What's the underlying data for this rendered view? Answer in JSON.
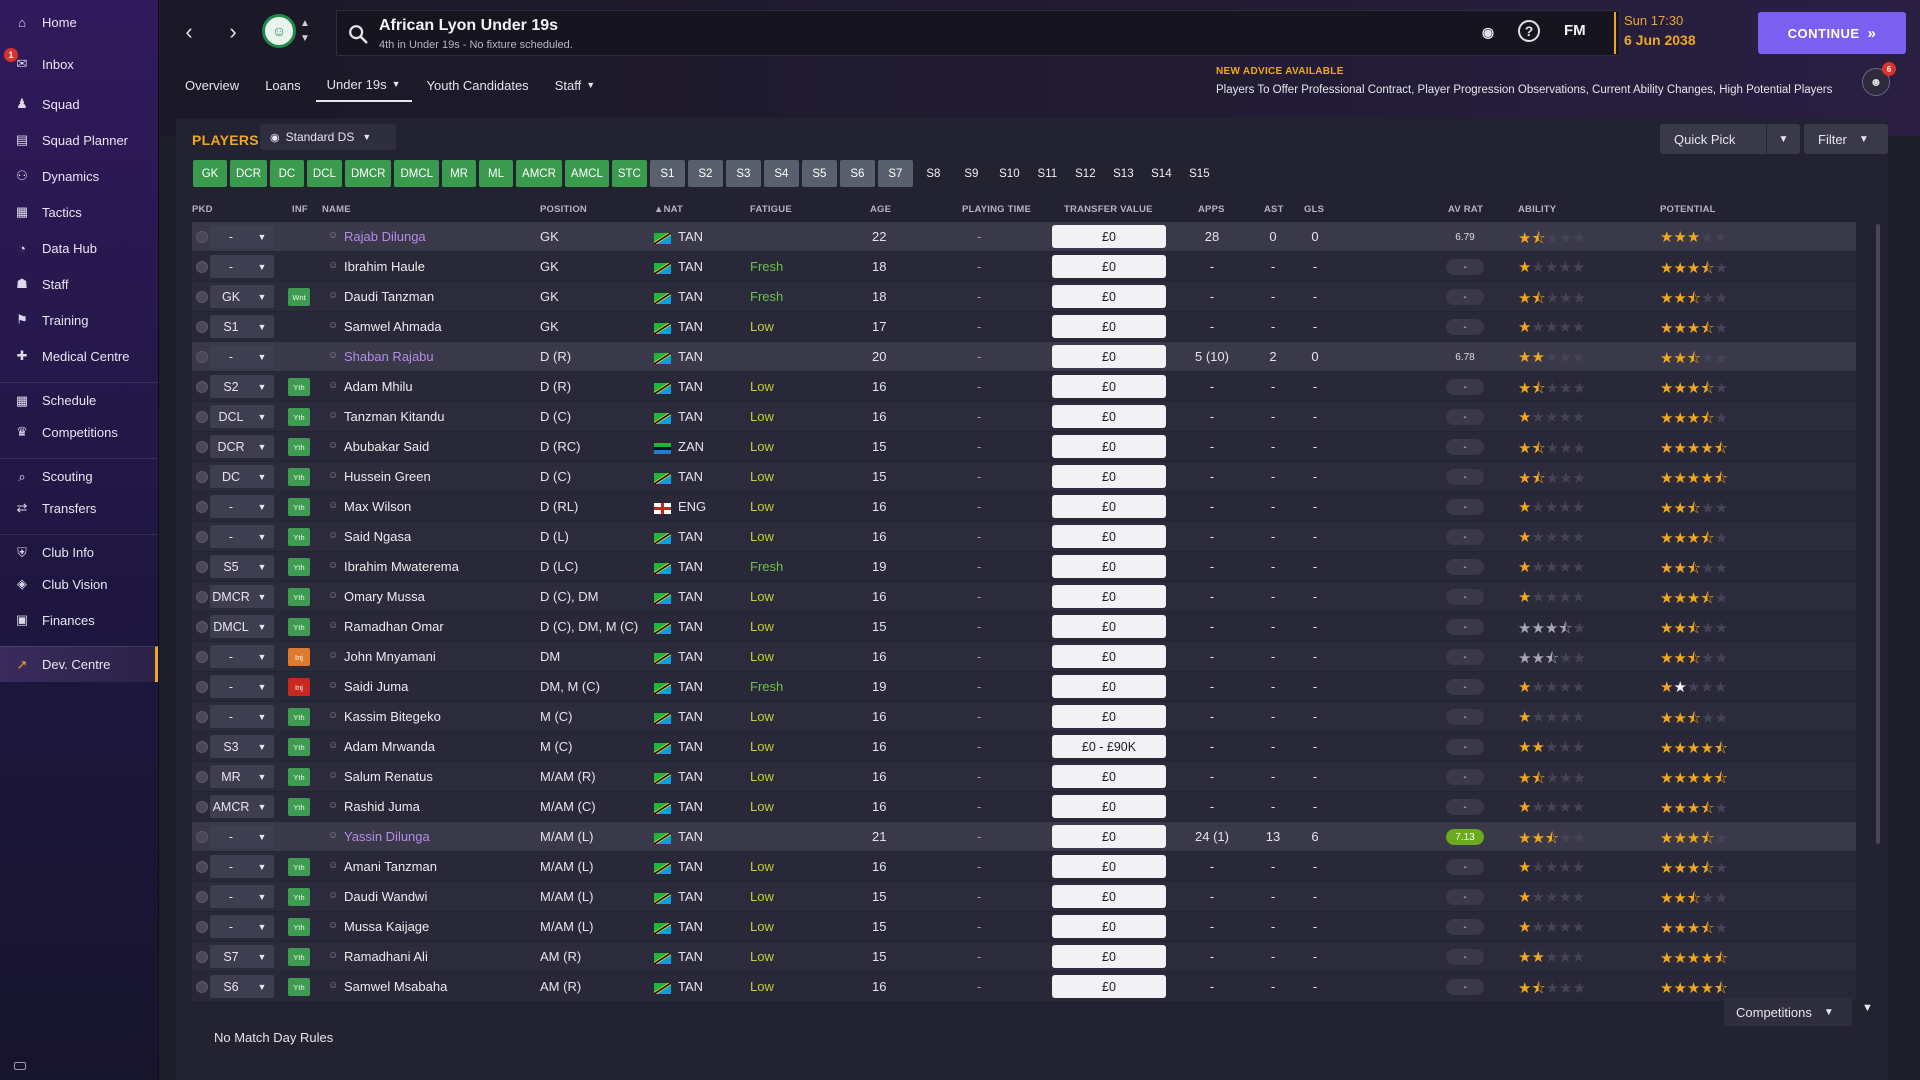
{
  "sidebar": {
    "items": [
      {
        "label": "Home",
        "icon": "home-icon"
      },
      {
        "label": "Inbox",
        "icon": "inbox-icon",
        "badge": "1"
      },
      {
        "label": "Squad",
        "icon": "squad-icon"
      },
      {
        "label": "Squad Planner",
        "icon": "squad-planner-icon"
      },
      {
        "label": "Dynamics",
        "icon": "dynamics-icon"
      },
      {
        "label": "Tactics",
        "icon": "tactics-icon"
      },
      {
        "label": "Data Hub",
        "icon": "data-hub-icon"
      },
      {
        "label": "Staff",
        "icon": "staff-icon"
      },
      {
        "label": "Training",
        "icon": "training-icon"
      },
      {
        "label": "Medical Centre",
        "icon": "medical-centre-icon"
      },
      {
        "label": "Schedule",
        "icon": "schedule-icon"
      },
      {
        "label": "Competitions",
        "icon": "competitions-icon"
      },
      {
        "label": "Scouting",
        "icon": "scouting-icon"
      },
      {
        "label": "Transfers",
        "icon": "transfers-icon"
      },
      {
        "label": "Club Info",
        "icon": "club-info-icon"
      },
      {
        "label": "Club Vision",
        "icon": "club-vision-icon"
      },
      {
        "label": "Finances",
        "icon": "finances-icon"
      },
      {
        "label": "Dev. Centre",
        "icon": "dev-centre-icon",
        "active": true
      }
    ]
  },
  "header": {
    "club_name": "African Lyon Under 19s",
    "club_sub": "4th in Under 19s - No fixture scheduled.",
    "fm_label": "FM",
    "time": "Sun 17:30",
    "date": "6 Jun 2038",
    "continue_label": "CONTINUE"
  },
  "tabs": [
    {
      "label": "Overview",
      "chev": false
    },
    {
      "label": "Loans",
      "chev": false
    },
    {
      "label": "Under 19s",
      "chev": true,
      "active": true
    },
    {
      "label": "Youth Candidates",
      "chev": false
    },
    {
      "label": "Staff",
      "chev": true
    }
  ],
  "advice": {
    "title": "NEW ADVICE AVAILABLE",
    "text": "Players To Offer Professional Contract, Player Progression Observations, Current Ability Changes, High Potential Players",
    "count": "6"
  },
  "panel": {
    "title": "PLAYERS",
    "view": "Standard DS",
    "quick_pick": "Quick Pick",
    "filter": "Filter",
    "no_rules": "No Match Day Rules",
    "competitions": "Competitions"
  },
  "position_filters": [
    {
      "label": "GK",
      "style": "green"
    },
    {
      "label": "DCR",
      "style": "green"
    },
    {
      "label": "DC",
      "style": "green"
    },
    {
      "label": "DCL",
      "style": "green"
    },
    {
      "label": "DMCR",
      "style": "green"
    },
    {
      "label": "DMCL",
      "style": "green"
    },
    {
      "label": "MR",
      "style": "green"
    },
    {
      "label": "ML",
      "style": "green"
    },
    {
      "label": "AMCR",
      "style": "green"
    },
    {
      "label": "AMCL",
      "style": "green"
    },
    {
      "label": "STC",
      "style": "green"
    },
    {
      "label": "S1",
      "style": "grey"
    },
    {
      "label": "S2",
      "style": "grey"
    },
    {
      "label": "S3",
      "style": "grey"
    },
    {
      "label": "S4",
      "style": "grey"
    },
    {
      "label": "S5",
      "style": "grey"
    },
    {
      "label": "S6",
      "style": "grey"
    },
    {
      "label": "S7",
      "style": "grey"
    },
    {
      "label": "S8",
      "style": "plain"
    },
    {
      "label": "S9",
      "style": "plain"
    },
    {
      "label": "S10",
      "style": "plain"
    },
    {
      "label": "S11",
      "style": "plain"
    },
    {
      "label": "S12",
      "style": "plain"
    },
    {
      "label": "S13",
      "style": "plain"
    },
    {
      "label": "S14",
      "style": "plain"
    },
    {
      "label": "S15",
      "style": "plain"
    }
  ],
  "columns": {
    "pkd": "PKD",
    "inf": "INF",
    "name": "NAME",
    "position": "POSITION",
    "nat": "NAT",
    "fatigue": "FATIGUE",
    "age": "AGE",
    "playing_time": "PLAYING TIME",
    "transfer_value": "TRANSFER VALUE",
    "apps": "APPS",
    "ast": "AST",
    "gls": "GLS",
    "av_rat": "AV RAT",
    "ability": "ABILITY",
    "potential": "POTENTIAL"
  },
  "players": [
    {
      "pkd": "-",
      "inf": "",
      "name": "Rajab Dilunga",
      "loan": true,
      "pos": "GK",
      "flag": "tan",
      "nat": "TAN",
      "fatigue": "",
      "fat_cls": "",
      "age": "22",
      "ptime": "-",
      "tv": "£0",
      "apps": "28",
      "ast": "0",
      "gls": "0",
      "avrat": "6.79",
      "avr_good": false,
      "ability": 1.5,
      "potential": 3,
      "pot_style": "on"
    },
    {
      "pkd": "-",
      "inf": "",
      "name": "Ibrahim Haule",
      "loan": false,
      "pos": "GK",
      "flag": "tan",
      "nat": "TAN",
      "fatigue": "Fresh",
      "fat_cls": "fresh",
      "age": "18",
      "ptime": "-",
      "tv": "£0",
      "apps": "-",
      "ast": "-",
      "gls": "-",
      "avrat": "-",
      "avr_good": false,
      "ability": 1,
      "potential": 3.5,
      "pot_style": "on"
    },
    {
      "pkd": "GK",
      "inf": "Wnt",
      "name": "Daudi Tanzman",
      "loan": false,
      "pos": "GK",
      "flag": "tan",
      "nat": "TAN",
      "fatigue": "Fresh",
      "fat_cls": "fresh",
      "age": "18",
      "ptime": "-",
      "tv": "£0",
      "apps": "-",
      "ast": "-",
      "gls": "-",
      "avrat": "-",
      "avr_good": false,
      "ability": 1.5,
      "potential": 2.5,
      "pot_style": "mix"
    },
    {
      "pkd": "S1",
      "inf": "",
      "name": "Samwel Ahmada",
      "loan": false,
      "pos": "GK",
      "flag": "tan",
      "nat": "TAN",
      "fatigue": "Low",
      "fat_cls": "low",
      "age": "17",
      "ptime": "-",
      "tv": "£0",
      "apps": "-",
      "ast": "-",
      "gls": "-",
      "avrat": "-",
      "avr_good": false,
      "ability": 1,
      "potential": 3.5,
      "pot_style": "on"
    },
    {
      "pkd": "-",
      "inf": "",
      "name": "Shaban Rajabu",
      "loan": true,
      "pos": "D (R)",
      "flag": "tan",
      "nat": "TAN",
      "fatigue": "",
      "fat_cls": "",
      "age": "20",
      "ptime": "-",
      "tv": "£0",
      "apps": "5 (10)",
      "ast": "2",
      "gls": "0",
      "avrat": "6.78",
      "avr_good": false,
      "ability": 2,
      "potential": 2.5,
      "pot_style": "mix"
    },
    {
      "pkd": "S2",
      "inf": "Yth",
      "name": "Adam Mhilu",
      "loan": false,
      "pos": "D (R)",
      "flag": "tan",
      "nat": "TAN",
      "fatigue": "Low",
      "fat_cls": "low",
      "age": "16",
      "ptime": "-",
      "tv": "£0",
      "apps": "-",
      "ast": "-",
      "gls": "-",
      "avrat": "-",
      "avr_good": false,
      "ability": 1.5,
      "potential": 3.5,
      "pot_style": "mix"
    },
    {
      "pkd": "DCL",
      "inf": "Yth",
      "name": "Tanzman Kitandu",
      "loan": false,
      "pos": "D (C)",
      "flag": "tan",
      "nat": "TAN",
      "fatigue": "Low",
      "fat_cls": "low",
      "age": "16",
      "ptime": "-",
      "tv": "£0",
      "apps": "-",
      "ast": "-",
      "gls": "-",
      "avrat": "-",
      "avr_good": false,
      "ability": 1,
      "potential": 3.5,
      "pot_style": "mix"
    },
    {
      "pkd": "DCR",
      "inf": "Yth",
      "name": "Abubakar Said",
      "loan": false,
      "pos": "D (RC)",
      "flag": "zan",
      "nat": "ZAN",
      "fatigue": "Low",
      "fat_cls": "low",
      "age": "15",
      "ptime": "-",
      "tv": "£0",
      "apps": "-",
      "ast": "-",
      "gls": "-",
      "avrat": "-",
      "avr_good": false,
      "ability": 1.5,
      "potential": 4.5,
      "pot_style": "on"
    },
    {
      "pkd": "DC",
      "inf": "Yth",
      "name": "Hussein Green",
      "loan": false,
      "pos": "D (C)",
      "flag": "tan",
      "nat": "TAN",
      "fatigue": "Low",
      "fat_cls": "low",
      "age": "15",
      "ptime": "-",
      "tv": "£0",
      "apps": "-",
      "ast": "-",
      "gls": "-",
      "avrat": "-",
      "avr_good": false,
      "ability": 1.5,
      "potential": 4.5,
      "pot_style": "on"
    },
    {
      "pkd": "-",
      "inf": "Yth",
      "name": "Max Wilson",
      "loan": false,
      "pos": "D (RL)",
      "flag": "eng",
      "nat": "ENG",
      "fatigue": "Low",
      "fat_cls": "low",
      "age": "16",
      "ptime": "-",
      "tv": "£0",
      "apps": "-",
      "ast": "-",
      "gls": "-",
      "avrat": "-",
      "avr_good": false,
      "ability": 1,
      "potential": 2.5,
      "pot_style": "mix"
    },
    {
      "pkd": "-",
      "inf": "Yth",
      "name": "Said Ngasa",
      "loan": false,
      "pos": "D (L)",
      "flag": "tan",
      "nat": "TAN",
      "fatigue": "Low",
      "fat_cls": "low",
      "age": "16",
      "ptime": "-",
      "tv": "£0",
      "apps": "-",
      "ast": "-",
      "gls": "-",
      "avrat": "-",
      "avr_good": false,
      "ability": 1,
      "potential": 3.5,
      "pot_style": "on"
    },
    {
      "pkd": "S5",
      "inf": "Yth",
      "name": "Ibrahim Mwaterema",
      "loan": false,
      "pos": "D (LC)",
      "flag": "tan",
      "nat": "TAN",
      "fatigue": "Fresh",
      "fat_cls": "fresh",
      "age": "19",
      "ptime": "-",
      "tv": "£0",
      "apps": "-",
      "ast": "-",
      "gls": "-",
      "avrat": "-",
      "avr_good": false,
      "ability": 1,
      "potential": 2.5,
      "pot_style": "mix"
    },
    {
      "pkd": "DMCR",
      "inf": "Yth",
      "name": "Omary Mussa",
      "loan": false,
      "pos": "D (C), DM",
      "flag": "tan",
      "nat": "TAN",
      "fatigue": "Low",
      "fat_cls": "low",
      "age": "16",
      "ptime": "-",
      "tv": "£0",
      "apps": "-",
      "ast": "-",
      "gls": "-",
      "avrat": "-",
      "avr_good": false,
      "ability": 1,
      "potential": 3.5,
      "pot_style": "mix"
    },
    {
      "pkd": "DMCL",
      "inf": "Yth",
      "name": "Ramadhan Omar",
      "loan": false,
      "pos": "D (C), DM, M (C)",
      "flag": "tan",
      "nat": "TAN",
      "fatigue": "Low",
      "fat_cls": "low",
      "age": "15",
      "ptime": "-",
      "tv": "£0",
      "apps": "-",
      "ast": "-",
      "gls": "-",
      "avrat": "-",
      "avr_good": false,
      "ability": 3.5,
      "ability_style": "grey",
      "potential": 2.5,
      "pot_style": "on"
    },
    {
      "pkd": "-",
      "inf": "Inj",
      "inf_cls": "inj1",
      "name": "John Mnyamani",
      "loan": false,
      "pos": "DM",
      "flag": "tan",
      "nat": "TAN",
      "fatigue": "Low",
      "fat_cls": "low",
      "age": "16",
      "ptime": "-",
      "tv": "£0",
      "apps": "-",
      "ast": "-",
      "gls": "-",
      "avrat": "-",
      "avr_good": false,
      "ability": 2.5,
      "ability_style": "grey",
      "potential": 2.5,
      "pot_style": "mix"
    },
    {
      "pkd": "-",
      "inf": "Inj",
      "inf_cls": "inj2",
      "name": "Saidi Juma",
      "loan": false,
      "pos": "DM, M (C)",
      "flag": "tan",
      "nat": "TAN",
      "fatigue": "Fresh",
      "fat_cls": "fresh",
      "age": "19",
      "ptime": "-",
      "tv": "£0",
      "apps": "-",
      "ast": "-",
      "gls": "-",
      "avrat": "-",
      "avr_good": false,
      "ability": 1,
      "potential": 2,
      "pot_style": "mix"
    },
    {
      "pkd": "-",
      "inf": "Yth",
      "name": "Kassim Bitegeko",
      "loan": false,
      "pos": "M (C)",
      "flag": "tan",
      "nat": "TAN",
      "fatigue": "Low",
      "fat_cls": "low",
      "age": "16",
      "ptime": "-",
      "tv": "£0",
      "apps": "-",
      "ast": "-",
      "gls": "-",
      "avrat": "-",
      "avr_good": false,
      "ability": 1,
      "potential": 2.5,
      "pot_style": "on"
    },
    {
      "pkd": "S3",
      "inf": "Yth",
      "name": "Adam Mrwanda",
      "loan": false,
      "pos": "M (C)",
      "flag": "tan",
      "nat": "TAN",
      "fatigue": "Low",
      "fat_cls": "low",
      "age": "16",
      "ptime": "-",
      "tv": "£0 - £90K",
      "apps": "-",
      "ast": "-",
      "gls": "-",
      "avrat": "-",
      "avr_good": false,
      "ability": 2,
      "potential": 4.5,
      "pot_style": "on"
    },
    {
      "pkd": "MR",
      "inf": "Yth",
      "name": "Salum Renatus",
      "loan": false,
      "pos": "M/AM (R)",
      "flag": "tan",
      "nat": "TAN",
      "fatigue": "Low",
      "fat_cls": "low",
      "age": "16",
      "ptime": "-",
      "tv": "£0",
      "apps": "-",
      "ast": "-",
      "gls": "-",
      "avrat": "-",
      "avr_good": false,
      "ability": 1.5,
      "potential": 4.5,
      "pot_style": "mix"
    },
    {
      "pkd": "AMCR",
      "inf": "Yth",
      "name": "Rashid Juma",
      "loan": false,
      "pos": "M/AM (C)",
      "flag": "tan",
      "nat": "TAN",
      "fatigue": "Low",
      "fat_cls": "low",
      "age": "16",
      "ptime": "-",
      "tv": "£0",
      "apps": "-",
      "ast": "-",
      "gls": "-",
      "avrat": "-",
      "avr_good": false,
      "ability": 1,
      "potential": 3.5,
      "pot_style": "mix"
    },
    {
      "pkd": "-",
      "inf": "",
      "name": "Yassin Dilunga",
      "loan": true,
      "pos": "M/AM (L)",
      "flag": "tan",
      "nat": "TAN",
      "fatigue": "",
      "fat_cls": "",
      "age": "21",
      "ptime": "-",
      "tv": "£0",
      "apps": "24 (1)",
      "ast": "13",
      "gls": "6",
      "avrat": "7.13",
      "avr_good": true,
      "ability": 2.5,
      "potential": 3.5,
      "pot_style": "mix"
    },
    {
      "pkd": "-",
      "inf": "Yth",
      "name": "Amani Tanzman",
      "loan": false,
      "pos": "M/AM (L)",
      "flag": "tan",
      "nat": "TAN",
      "fatigue": "Low",
      "fat_cls": "low",
      "age": "16",
      "ptime": "-",
      "tv": "£0",
      "apps": "-",
      "ast": "-",
      "gls": "-",
      "avrat": "-",
      "avr_good": false,
      "ability": 1,
      "potential": 3.5,
      "pot_style": "on"
    },
    {
      "pkd": "-",
      "inf": "Yth",
      "name": "Daudi Wandwi",
      "loan": false,
      "pos": "M/AM (L)",
      "flag": "tan",
      "nat": "TAN",
      "fatigue": "Low",
      "fat_cls": "low",
      "age": "15",
      "ptime": "-",
      "tv": "£0",
      "apps": "-",
      "ast": "-",
      "gls": "-",
      "avrat": "-",
      "avr_good": false,
      "ability": 1,
      "potential": 2.5,
      "pot_style": "mix"
    },
    {
      "pkd": "-",
      "inf": "Yth",
      "name": "Mussa Kaijage",
      "loan": false,
      "pos": "M/AM (L)",
      "flag": "tan",
      "nat": "TAN",
      "fatigue": "Low",
      "fat_cls": "low",
      "age": "15",
      "ptime": "-",
      "tv": "£0",
      "apps": "-",
      "ast": "-",
      "gls": "-",
      "avrat": "-",
      "avr_good": false,
      "ability": 1,
      "potential": 3.5,
      "pot_style": "mix"
    },
    {
      "pkd": "S7",
      "inf": "Yth",
      "name": "Ramadhani Ali",
      "loan": false,
      "pos": "AM (R)",
      "flag": "tan",
      "nat": "TAN",
      "fatigue": "Low",
      "fat_cls": "low",
      "age": "15",
      "ptime": "-",
      "tv": "£0",
      "apps": "-",
      "ast": "-",
      "gls": "-",
      "avrat": "-",
      "avr_good": false,
      "ability": 2,
      "potential": 4.5,
      "pot_style": "mix"
    },
    {
      "pkd": "S6",
      "inf": "Yth",
      "name": "Samwel Msabaha",
      "loan": false,
      "pos": "AM (R)",
      "flag": "tan",
      "nat": "TAN",
      "fatigue": "Low",
      "fat_cls": "low",
      "age": "16",
      "ptime": "-",
      "tv": "£0",
      "apps": "-",
      "ast": "-",
      "gls": "-",
      "avrat": "-",
      "avr_good": false,
      "ability": 1.5,
      "potential": 4.5,
      "pot_style": "on"
    }
  ]
}
